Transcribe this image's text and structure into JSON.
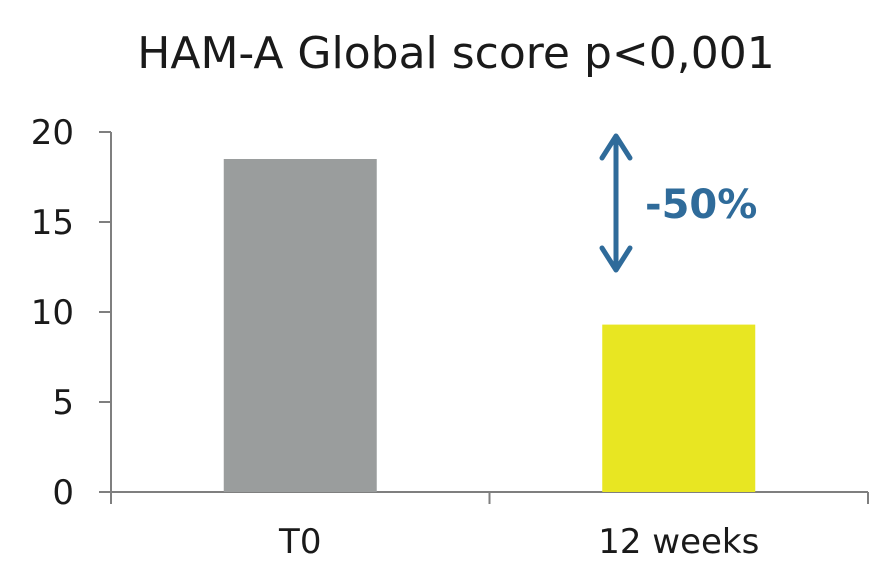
{
  "chart_data": {
    "type": "bar",
    "title": "HAM-A Global score p<0,001",
    "categories": [
      "T0",
      "12 weeks"
    ],
    "values": [
      18.5,
      9.3
    ],
    "bar_colors": [
      "#9a9d9d",
      "#e8e622"
    ],
    "ylim": [
      0,
      20
    ],
    "yticks": [
      0,
      5,
      10,
      15,
      20
    ],
    "xlabel": "",
    "ylabel": "",
    "grid": false,
    "annotation": {
      "text": "-50%",
      "color": "#2f6b9a"
    }
  }
}
